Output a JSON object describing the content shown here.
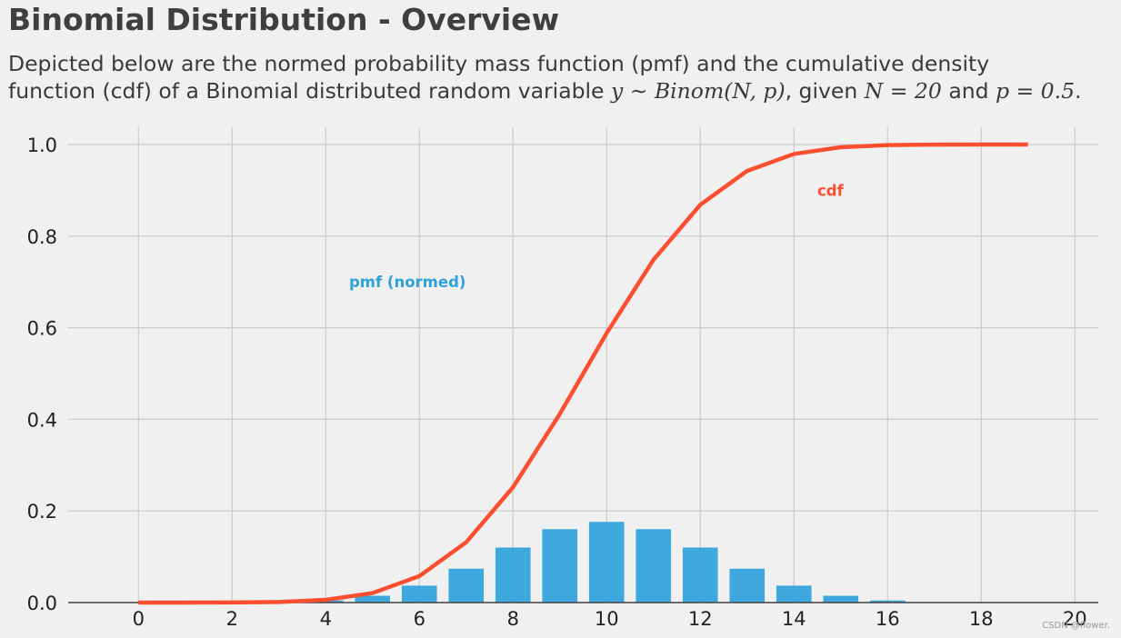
{
  "header": {
    "title": "Binomial Distribution - Overview",
    "subtitle_line1": "Depicted below are the normed probability mass function (pmf) and the cumulative density",
    "subtitle_line2_pre": "function (cdf) of a Binomial distributed random variable ",
    "subtitle_formula": "y ∼ Binom(N, p)",
    "subtitle_line2_mid": ", given ",
    "subtitle_n": "N = 20",
    "subtitle_and": " and ",
    "subtitle_p": "p = 0.5",
    "subtitle_end": "."
  },
  "watermark": "CSDN @flower.",
  "colors": {
    "background": "#f0f0f0",
    "grid": "#cbcbcb",
    "pmf": "#30a2da",
    "cdf": "#fc4f30",
    "axis": "#444444"
  },
  "chart_data": {
    "type": "bar",
    "xlim": [
      -1.5,
      20.5
    ],
    "ylim": [
      0,
      1.0
    ],
    "xticks": [
      0,
      2,
      4,
      6,
      8,
      10,
      12,
      14,
      16,
      18,
      20
    ],
    "yticks": [
      0.0,
      0.2,
      0.4,
      0.6,
      0.8,
      1.0
    ],
    "xtick_labels": [
      "0",
      "2",
      "4",
      "6",
      "8",
      "10",
      "12",
      "14",
      "16",
      "18",
      "20"
    ],
    "ytick_labels": [
      "0.0",
      "0.2",
      "0.4",
      "0.6",
      "0.8",
      "1.0"
    ],
    "grid": true,
    "series": [
      {
        "name": "pmf (normed)",
        "type": "bar",
        "x": [
          0,
          1,
          2,
          3,
          4,
          5,
          6,
          7,
          8,
          9,
          10,
          11,
          12,
          13,
          14,
          15,
          16,
          17,
          18,
          19,
          20
        ],
        "values": [
          1e-06,
          2e-05,
          0.0002,
          0.0011,
          0.0046,
          0.0148,
          0.037,
          0.0739,
          0.1201,
          0.1602,
          0.1762,
          0.1602,
          0.1201,
          0.0739,
          0.037,
          0.0148,
          0.0046,
          0.0011,
          0.0002,
          2e-05,
          1e-06
        ]
      },
      {
        "name": "cdf",
        "type": "line",
        "x": [
          0,
          1,
          2,
          3,
          4,
          5,
          6,
          7,
          8,
          9,
          10,
          11,
          12,
          13,
          14,
          15,
          16,
          17,
          18,
          19
        ],
        "values": [
          1e-06,
          2e-05,
          0.0002,
          0.0013,
          0.0059,
          0.0207,
          0.0577,
          0.1316,
          0.2517,
          0.4119,
          0.5881,
          0.7483,
          0.8684,
          0.9423,
          0.9793,
          0.9941,
          0.9987,
          0.9998,
          1.0,
          1.0
        ]
      }
    ],
    "annotations": [
      {
        "text": "pmf (normed)",
        "series": "pmf (normed)",
        "x": 4.5,
        "y": 0.7
      },
      {
        "text": "cdf",
        "series": "cdf",
        "x": 14.5,
        "y": 0.9
      }
    ]
  }
}
